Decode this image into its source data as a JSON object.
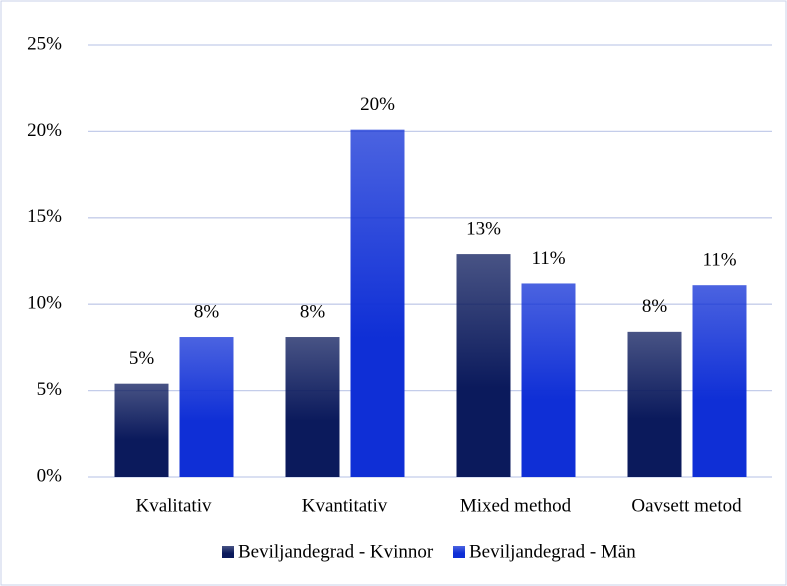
{
  "chart_data": {
    "type": "bar",
    "categories": [
      "Kvalitativ",
      "Kvantitativ",
      "Mixed method",
      "Oavsett metod"
    ],
    "series": [
      {
        "name": "Beviljandegrad - Kvinnor",
        "color": "#0b1a5c",
        "values": [
          5.4,
          8.1,
          12.9,
          8.4
        ],
        "value_labels": [
          "5%",
          "8%",
          "13%",
          "8%"
        ]
      },
      {
        "name": "Beviljandegrad - Män",
        "color": "#0f2fd6",
        "values": [
          8.1,
          20.1,
          11.2,
          11.1
        ],
        "value_labels": [
          "8%",
          "20%",
          "11%",
          "11%"
        ]
      }
    ],
    "ylim": [
      0,
      25
    ],
    "yticks": [
      {
        "value": 0,
        "label": "0%"
      },
      {
        "value": 5,
        "label": "5%"
      },
      {
        "value": 10,
        "label": "10%"
      },
      {
        "value": 15,
        "label": "15%"
      },
      {
        "value": 20,
        "label": "20%"
      },
      {
        "value": 25,
        "label": "25%"
      }
    ],
    "grid": true,
    "legend": "bottom"
  }
}
